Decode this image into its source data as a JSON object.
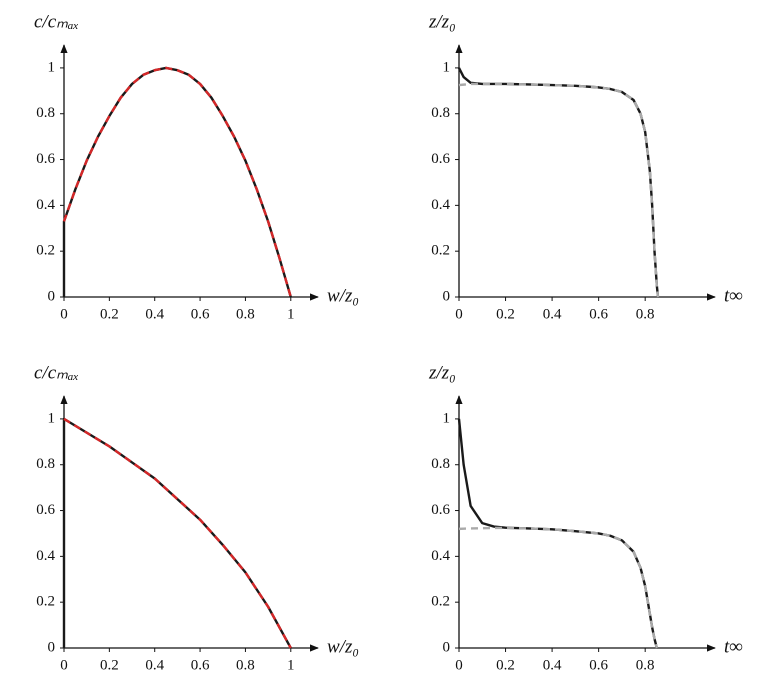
{
  "chart_data": [
    {
      "type": "line",
      "y_label": "c/cₘₐₓ",
      "x_label": "w/z₀",
      "x": [
        0,
        0,
        0.05,
        0.1,
        0.15,
        0.2,
        0.25,
        0.3,
        0.35,
        0.4,
        0.45,
        0.5,
        0.55,
        0.6,
        0.65,
        0.7,
        0.75,
        0.8,
        0.85,
        0.9,
        0.95,
        1
      ],
      "series": [
        {
          "color": "#1a1a1a",
          "dashed": false,
          "values": [
            0,
            0.33,
            0.47,
            0.595,
            0.7,
            0.79,
            0.87,
            0.93,
            0.97,
            0.99,
            1,
            0.99,
            0.97,
            0.93,
            0.87,
            0.79,
            0.7,
            0.595,
            0.47,
            0.33,
            0.17,
            0
          ]
        },
        {
          "color": "#d62728",
          "dashed": true,
          "values": [
            null,
            0.33,
            0.47,
            0.595,
            0.7,
            0.79,
            0.87,
            0.93,
            0.97,
            0.99,
            1,
            0.99,
            0.97,
            0.93,
            0.87,
            0.79,
            0.7,
            0.595,
            0.47,
            0.33,
            0.17,
            0
          ]
        }
      ],
      "xlim": [
        0,
        1.12
      ],
      "ylim": [
        0,
        1.1
      ],
      "xticks": [
        0,
        0.2,
        0.4,
        0.6,
        0.8,
        1
      ],
      "yticks": [
        0,
        0.2,
        0.4,
        0.6,
        0.8,
        1
      ]
    },
    {
      "type": "line",
      "y_label": "z/z₀",
      "x_label": "t∞",
      "x": [
        0,
        0.02,
        0.05,
        0.1,
        0.2,
        0.3,
        0.4,
        0.5,
        0.6,
        0.65,
        0.7,
        0.75,
        0.78,
        0.8,
        0.82,
        0.83,
        0.84,
        0.85,
        0.855
      ],
      "series": [
        {
          "color": "#1a1a1a",
          "dashed": false,
          "values": [
            1,
            0.96,
            0.935,
            0.93,
            0.93,
            0.928,
            0.925,
            0.922,
            0.915,
            0.908,
            0.895,
            0.86,
            0.8,
            0.72,
            0.55,
            0.4,
            0.2,
            0.05,
            0
          ]
        },
        {
          "color": "#aaaaaa",
          "dashed": true,
          "values": [
            0.925,
            0.927,
            0.93,
            0.93,
            0.93,
            0.928,
            0.925,
            0.922,
            0.915,
            0.908,
            0.895,
            0.86,
            0.8,
            0.72,
            0.55,
            0.4,
            0.2,
            0.05,
            0
          ]
        }
      ],
      "xlim": [
        0,
        1.1
      ],
      "ylim": [
        0,
        1.1
      ],
      "xticks": [
        0,
        0.2,
        0.4,
        0.6,
        0.8
      ],
      "yticks": [
        0,
        0.2,
        0.4,
        0.6,
        0.8,
        1
      ]
    },
    {
      "type": "line",
      "y_label": "c/cₘₐₓ",
      "x_label": "w/z₀",
      "x": [
        0,
        0,
        0.1,
        0.2,
        0.3,
        0.4,
        0.5,
        0.6,
        0.7,
        0.8,
        0.9,
        1
      ],
      "series": [
        {
          "color": "#1a1a1a",
          "dashed": false,
          "values": [
            0,
            1,
            0.94,
            0.88,
            0.81,
            0.74,
            0.65,
            0.56,
            0.45,
            0.33,
            0.18,
            0
          ]
        },
        {
          "color": "#d62728",
          "dashed": true,
          "values": [
            null,
            1,
            0.94,
            0.88,
            0.81,
            0.74,
            0.65,
            0.56,
            0.45,
            0.33,
            0.18,
            0
          ]
        }
      ],
      "xlim": [
        0,
        1.12
      ],
      "ylim": [
        0,
        1.1
      ],
      "xticks": [
        0,
        0.2,
        0.4,
        0.6,
        0.8,
        1
      ],
      "yticks": [
        0,
        0.2,
        0.4,
        0.6,
        0.8,
        1
      ]
    },
    {
      "type": "line",
      "y_label": "z/z₀",
      "x_label": "t∞",
      "x": [
        0,
        0.02,
        0.05,
        0.1,
        0.15,
        0.2,
        0.3,
        0.4,
        0.5,
        0.6,
        0.65,
        0.7,
        0.75,
        0.78,
        0.8,
        0.82,
        0.83,
        0.84,
        0.85
      ],
      "series": [
        {
          "color": "#1a1a1a",
          "dashed": false,
          "values": [
            1,
            0.8,
            0.62,
            0.545,
            0.53,
            0.525,
            0.522,
            0.518,
            0.51,
            0.5,
            0.49,
            0.47,
            0.42,
            0.35,
            0.27,
            0.15,
            0.09,
            0.04,
            0
          ]
        },
        {
          "color": "#aaaaaa",
          "dashed": true,
          "values": [
            0.52,
            0.521,
            0.522,
            0.523,
            0.524,
            0.524,
            0.522,
            0.518,
            0.51,
            0.5,
            0.49,
            0.47,
            0.42,
            0.35,
            0.27,
            0.15,
            0.09,
            0.04,
            0
          ]
        }
      ],
      "xlim": [
        0,
        1.1
      ],
      "ylim": [
        0,
        1.1
      ],
      "xticks": [
        0,
        0.2,
        0.4,
        0.6,
        0.8
      ],
      "yticks": [
        0,
        0.2,
        0.4,
        0.6,
        0.8,
        1
      ]
    }
  ]
}
